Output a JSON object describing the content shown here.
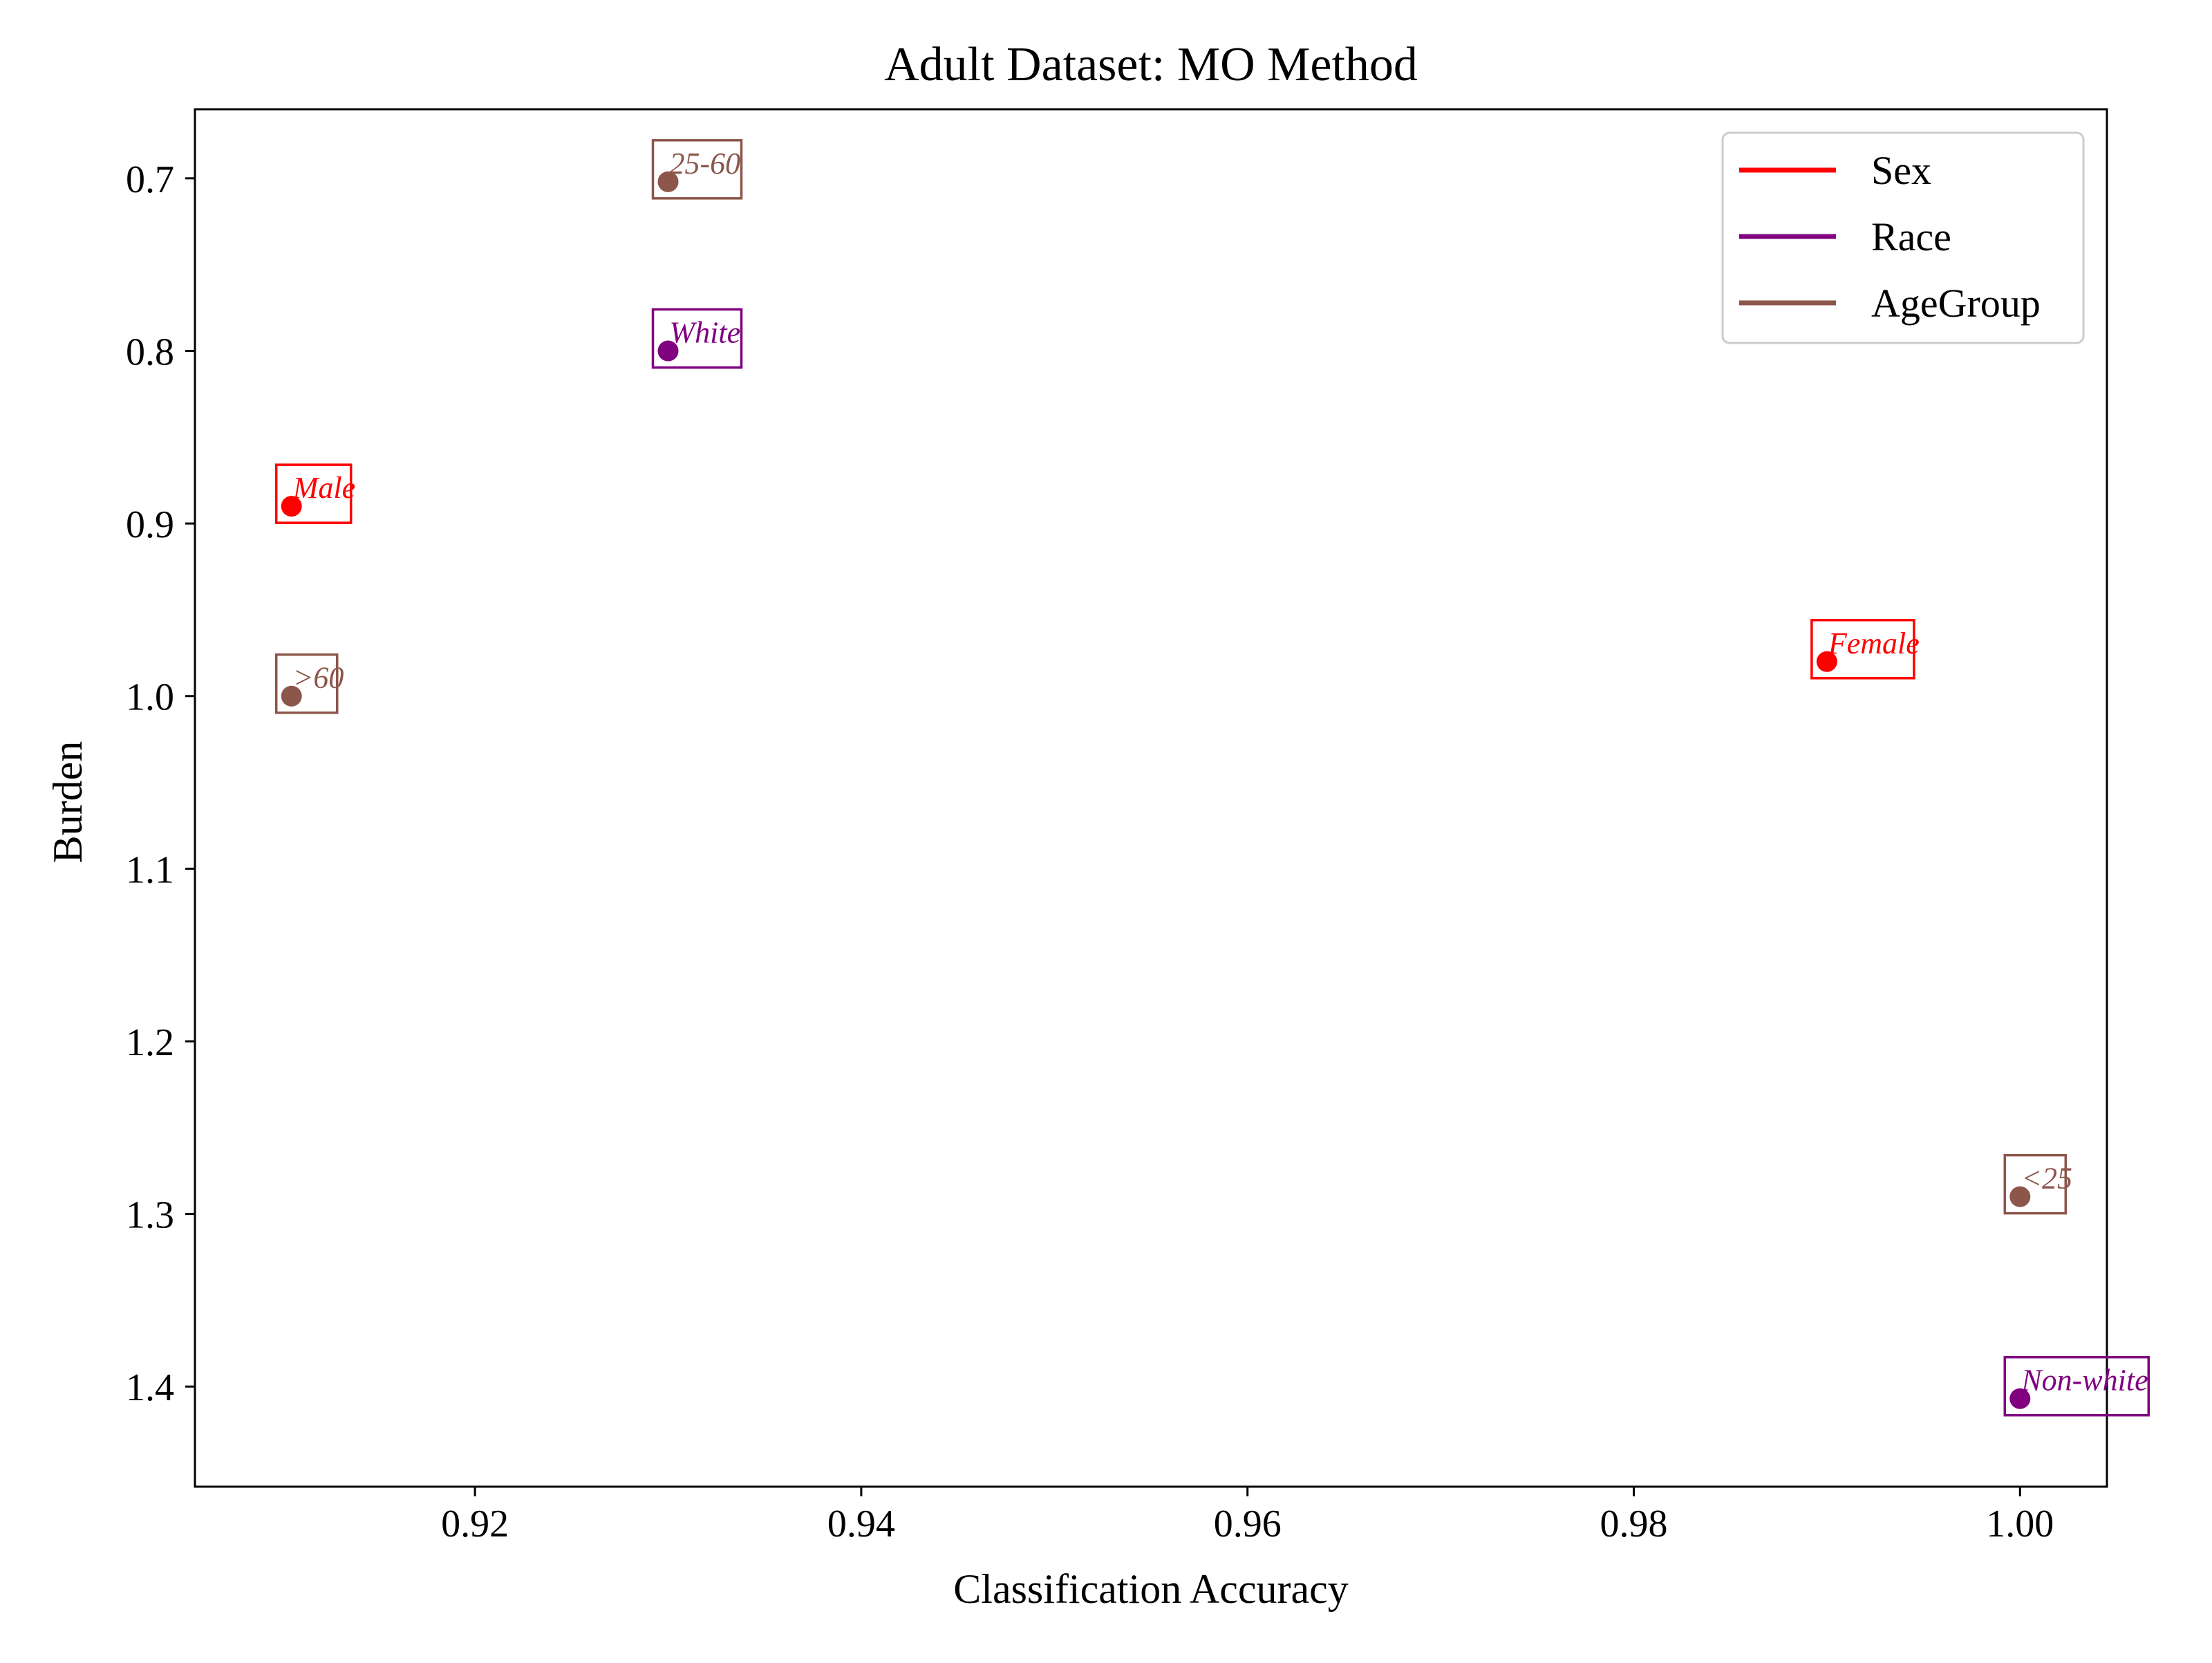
{
  "chart_data": {
    "type": "scatter",
    "title": "Adult Dataset: MO Method",
    "xlabel": "Classification Accuracy",
    "ylabel": "Burden",
    "xlim": [
      0.9055,
      1.0045
    ],
    "ylim": [
      0.66,
      1.458
    ],
    "y_inverted": true,
    "grid": false,
    "x_ticks": [
      0.92,
      0.94,
      0.96,
      0.98,
      1.0
    ],
    "x_tick_labels": [
      "0.92",
      "0.94",
      "0.96",
      "0.98",
      "1.00"
    ],
    "y_ticks": [
      0.7,
      0.8,
      0.9,
      1.0,
      1.1,
      1.2,
      1.3,
      1.4
    ],
    "y_tick_labels": [
      "0.7",
      "0.8",
      "0.9",
      "1.0",
      "1.1",
      "1.2",
      "1.3",
      "1.4"
    ],
    "legend_position": "top-right",
    "series": [
      {
        "name": "Sex",
        "color": "#ff0000",
        "points": [
          {
            "label": "Male",
            "x": 0.9105,
            "y": 0.89
          },
          {
            "label": "Female",
            "x": 0.99,
            "y": 0.98
          }
        ]
      },
      {
        "name": "Race",
        "color": "#800080",
        "points": [
          {
            "label": "White",
            "x": 0.93,
            "y": 0.8
          },
          {
            "label": "Non-white",
            "x": 1.0,
            "y": 1.407
          }
        ]
      },
      {
        "name": "AgeGroup",
        "color": "#8c564b",
        "points": [
          {
            "label": "25-60",
            "x": 0.93,
            "y": 0.702
          },
          {
            "label": ">60",
            "x": 0.9105,
            "y": 1.0
          },
          {
            "label": "<25",
            "x": 1.0,
            "y": 1.29
          }
        ]
      }
    ]
  }
}
